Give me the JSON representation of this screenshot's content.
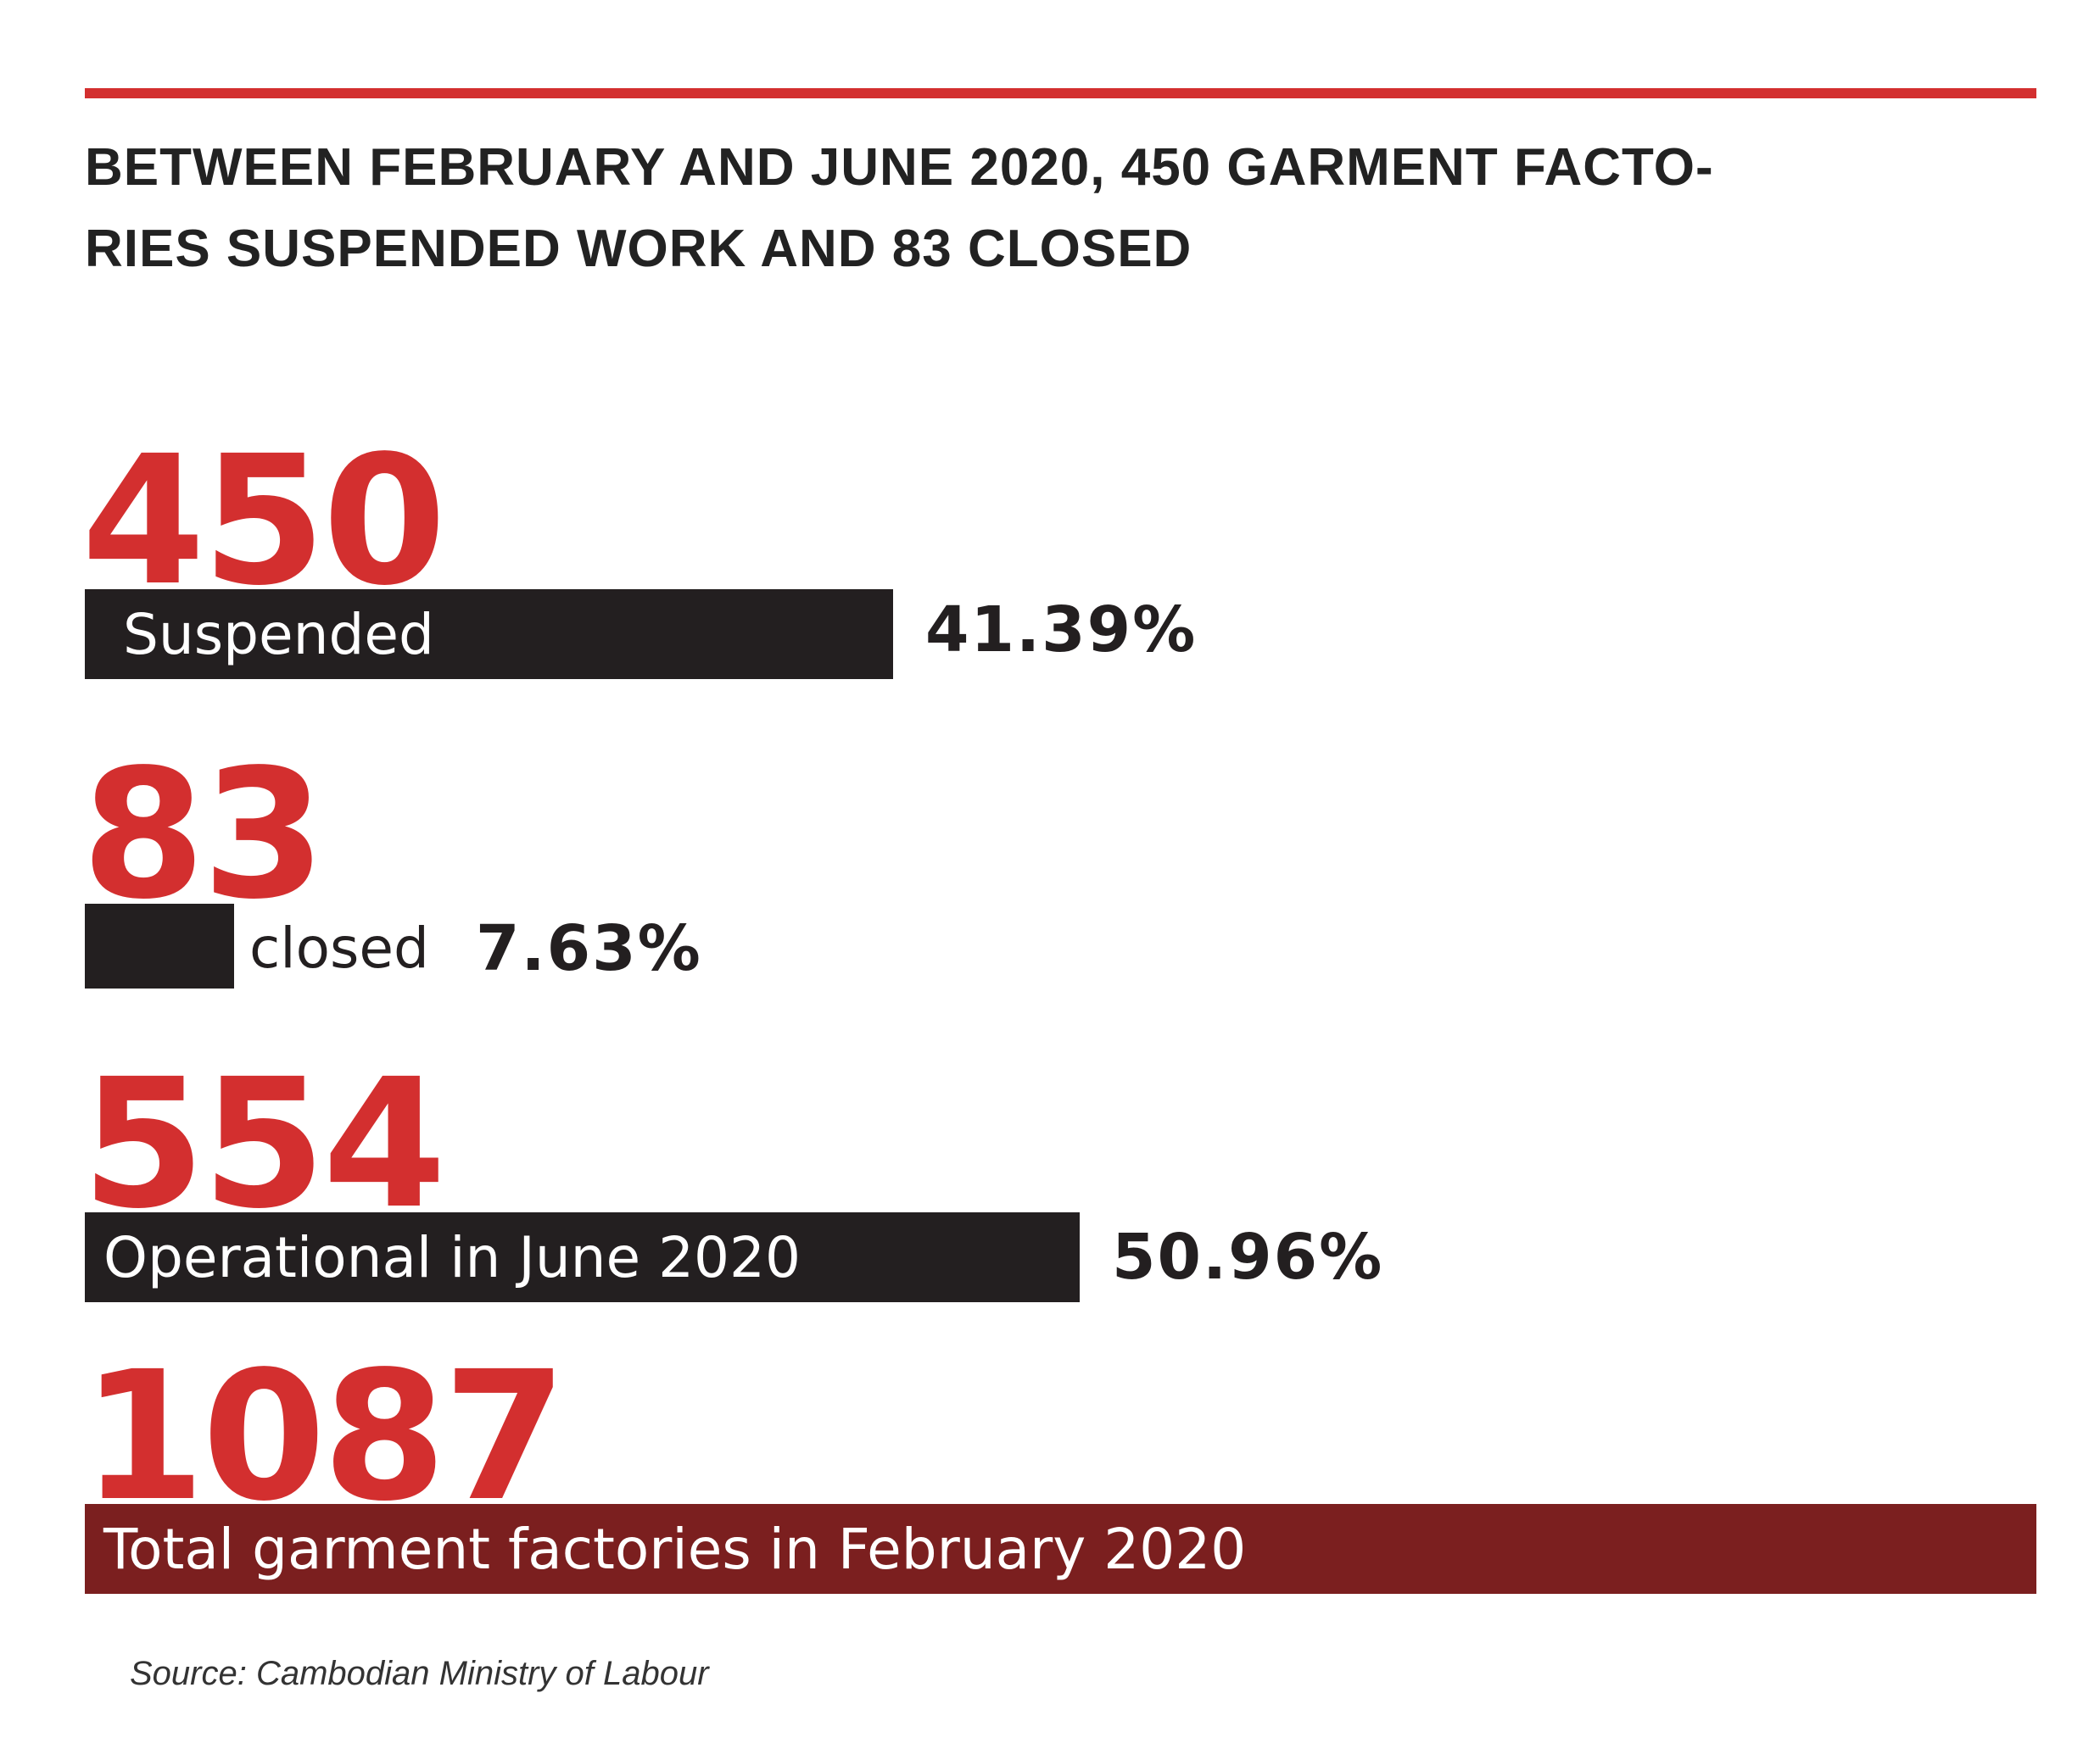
{
  "title": "BETWEEN FEBRUARY AND JUNE 2020, 450 GARMENT FACTO-RIES SUSPENDED WORK AND 83 CLOSED",
  "title_lines": [
    "BETWEEN FEBRUARY AND JUNE 2020, 450 GARMENT FACTO-",
    "RIES SUSPENDED WORK AND 83 CLOSED"
  ],
  "source": "Source: Cambodian Ministry of Labour",
  "colors": {
    "accent_red": "#d32f2f",
    "bar_dark": "#231f20",
    "total_bar": "#7b1f1f"
  },
  "items": [
    {
      "number": "450",
      "label": "Suspended",
      "percent_text": "41.39%"
    },
    {
      "number": "83",
      "label": "closed",
      "percent_text": "7.63%"
    },
    {
      "number": "554",
      "label": "Operational in June 2020",
      "percent_text": "50.96%"
    },
    {
      "number": "1087",
      "label": "Total garment factories in February 2020"
    }
  ],
  "chart_data": {
    "type": "bar",
    "title": "BETWEEN FEBRUARY AND JUNE 2020, 450 GARMENT FACTO-RIES SUSPENDED WORK AND 83 CLOSED",
    "categories": [
      "Suspended",
      "closed",
      "Operational in June 2020",
      "Total garment factories in February 2020"
    ],
    "values": [
      450,
      83,
      554,
      1087
    ],
    "percentages": [
      41.39,
      7.63,
      50.96,
      100
    ]
  }
}
